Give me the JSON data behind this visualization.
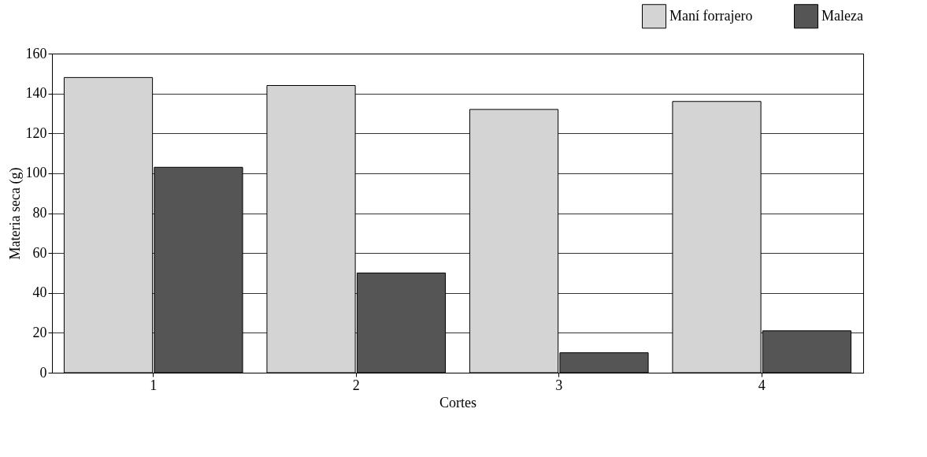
{
  "chart_data": {
    "type": "bar",
    "xlabel": "Cortes",
    "ylabel": "Materia seca (g)",
    "categories": [
      "1",
      "2",
      "3",
      "4"
    ],
    "series": [
      {
        "name": "Maní forrajero",
        "color": "#d4d4d4",
        "values": [
          148,
          144,
          132,
          136
        ]
      },
      {
        "name": "Maleza",
        "color": "#555555",
        "values": [
          103,
          50,
          10,
          21
        ]
      }
    ],
    "ylim": [
      0,
      160
    ],
    "yticks": [
      0,
      20,
      40,
      60,
      80,
      100,
      120,
      140,
      160
    ],
    "grid": "y",
    "legend": "top right"
  }
}
